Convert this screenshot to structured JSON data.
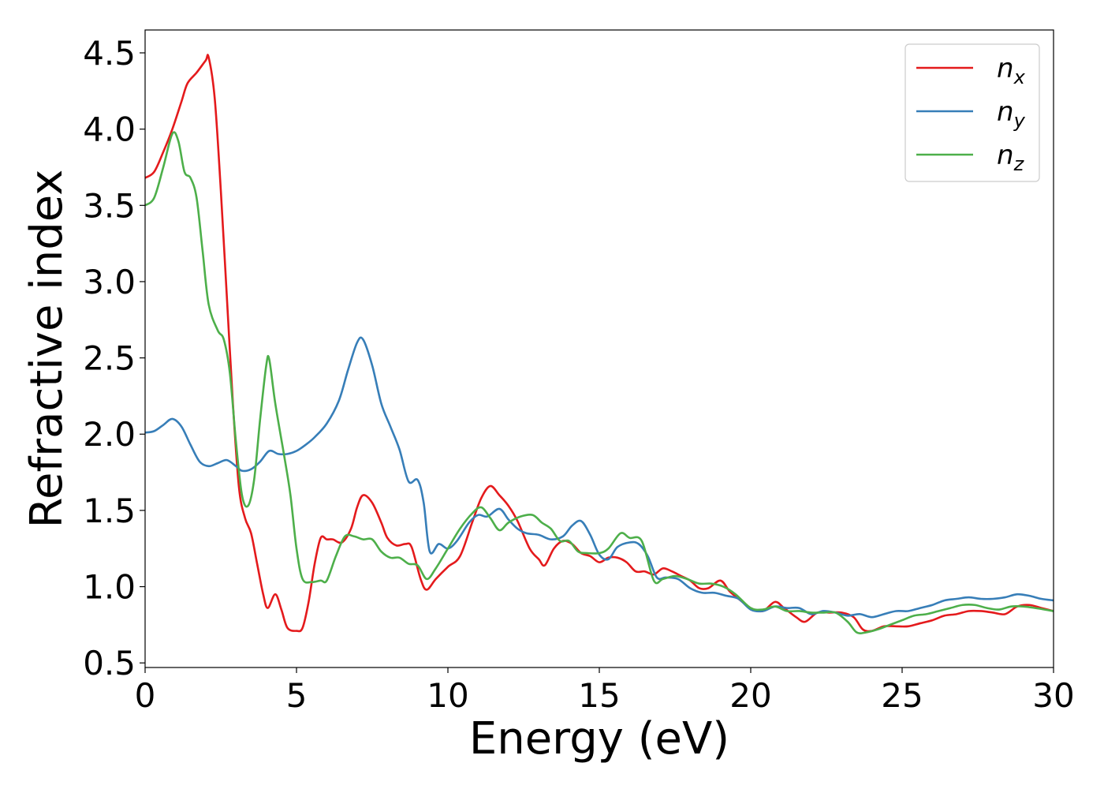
{
  "chart_data": {
    "type": "line",
    "title": "",
    "xlabel": "Energy (eV)",
    "ylabel": "Refractive index",
    "xlim": [
      0,
      30
    ],
    "ylim": [
      0.47,
      4.65
    ],
    "xticks": [
      0,
      5,
      10,
      15,
      20,
      25,
      30
    ],
    "xtick_labels": [
      "0",
      "5",
      "10",
      "15",
      "20",
      "25",
      "30"
    ],
    "yticks": [
      0.5,
      1.0,
      1.5,
      2.0,
      2.5,
      3.0,
      3.5,
      4.0,
      4.5
    ],
    "ytick_labels": [
      "0.5",
      "1.0",
      "1.5",
      "2.0",
      "2.5",
      "3.0",
      "3.5",
      "4.0",
      "4.5"
    ],
    "grid": false,
    "legend_position": "top-right",
    "series": [
      {
        "name": "n",
        "subscript": "x",
        "color": "#e41a1c",
        "points": [
          [
            0,
            3.68
          ],
          [
            0.3,
            3.72
          ],
          [
            0.6,
            3.85
          ],
          [
            0.9,
            4.0
          ],
          [
            1.2,
            4.18
          ],
          [
            1.4,
            4.3
          ],
          [
            1.7,
            4.37
          ],
          [
            2.0,
            4.45
          ],
          [
            2.1,
            4.47
          ],
          [
            2.3,
            4.2
          ],
          [
            2.5,
            3.6
          ],
          [
            2.7,
            2.9
          ],
          [
            2.9,
            2.2
          ],
          [
            3.1,
            1.65
          ],
          [
            3.3,
            1.45
          ],
          [
            3.5,
            1.35
          ],
          [
            3.7,
            1.15
          ],
          [
            3.9,
            0.95
          ],
          [
            4.05,
            0.86
          ],
          [
            4.3,
            0.95
          ],
          [
            4.5,
            0.85
          ],
          [
            4.7,
            0.73
          ],
          [
            5.0,
            0.71
          ],
          [
            5.2,
            0.73
          ],
          [
            5.4,
            0.9
          ],
          [
            5.6,
            1.15
          ],
          [
            5.8,
            1.32
          ],
          [
            6.0,
            1.31
          ],
          [
            6.2,
            1.31
          ],
          [
            6.5,
            1.29
          ],
          [
            6.8,
            1.38
          ],
          [
            7.0,
            1.52
          ],
          [
            7.2,
            1.6
          ],
          [
            7.5,
            1.55
          ],
          [
            7.8,
            1.42
          ],
          [
            8.0,
            1.32
          ],
          [
            8.3,
            1.27
          ],
          [
            8.6,
            1.28
          ],
          [
            8.8,
            1.26
          ],
          [
            9.1,
            1.05
          ],
          [
            9.3,
            0.98
          ],
          [
            9.6,
            1.05
          ],
          [
            10.0,
            1.13
          ],
          [
            10.4,
            1.2
          ],
          [
            10.8,
            1.42
          ],
          [
            11.1,
            1.58
          ],
          [
            11.4,
            1.66
          ],
          [
            11.7,
            1.6
          ],
          [
            12.0,
            1.53
          ],
          [
            12.3,
            1.43
          ],
          [
            12.7,
            1.25
          ],
          [
            13.0,
            1.18
          ],
          [
            13.2,
            1.14
          ],
          [
            13.5,
            1.25
          ],
          [
            13.8,
            1.3
          ],
          [
            14.1,
            1.28
          ],
          [
            14.4,
            1.22
          ],
          [
            14.7,
            1.2
          ],
          [
            15.0,
            1.16
          ],
          [
            15.3,
            1.19
          ],
          [
            15.6,
            1.19
          ],
          [
            15.9,
            1.16
          ],
          [
            16.2,
            1.1
          ],
          [
            16.5,
            1.1
          ],
          [
            16.8,
            1.08
          ],
          [
            17.1,
            1.12
          ],
          [
            17.4,
            1.1
          ],
          [
            17.7,
            1.07
          ],
          [
            18.0,
            1.04
          ],
          [
            18.3,
            0.99
          ],
          [
            18.6,
            0.99
          ],
          [
            19.0,
            1.04
          ],
          [
            19.3,
            0.97
          ],
          [
            19.6,
            0.92
          ],
          [
            20.0,
            0.86
          ],
          [
            20.4,
            0.84
          ],
          [
            20.8,
            0.9
          ],
          [
            21.1,
            0.86
          ],
          [
            21.5,
            0.8
          ],
          [
            21.8,
            0.77
          ],
          [
            22.2,
            0.83
          ],
          [
            22.6,
            0.83
          ],
          [
            23.0,
            0.83
          ],
          [
            23.4,
            0.8
          ],
          [
            23.7,
            0.72
          ],
          [
            24.0,
            0.71
          ],
          [
            24.4,
            0.74
          ],
          [
            24.8,
            0.74
          ],
          [
            25.2,
            0.74
          ],
          [
            25.6,
            0.76
          ],
          [
            26.0,
            0.78
          ],
          [
            26.4,
            0.81
          ],
          [
            26.8,
            0.82
          ],
          [
            27.2,
            0.84
          ],
          [
            27.6,
            0.84
          ],
          [
            28.0,
            0.83
          ],
          [
            28.4,
            0.82
          ],
          [
            28.8,
            0.87
          ],
          [
            29.2,
            0.88
          ],
          [
            29.6,
            0.86
          ],
          [
            30.0,
            0.84
          ]
        ]
      },
      {
        "name": "n",
        "subscript": "y",
        "color": "#377eb8",
        "points": [
          [
            0,
            2.01
          ],
          [
            0.3,
            2.02
          ],
          [
            0.6,
            2.06
          ],
          [
            0.9,
            2.1
          ],
          [
            1.2,
            2.05
          ],
          [
            1.5,
            1.93
          ],
          [
            1.8,
            1.82
          ],
          [
            2.1,
            1.79
          ],
          [
            2.4,
            1.81
          ],
          [
            2.7,
            1.83
          ],
          [
            3.0,
            1.79
          ],
          [
            3.2,
            1.76
          ],
          [
            3.5,
            1.77
          ],
          [
            3.8,
            1.82
          ],
          [
            4.1,
            1.89
          ],
          [
            4.4,
            1.87
          ],
          [
            4.7,
            1.87
          ],
          [
            5.0,
            1.89
          ],
          [
            5.3,
            1.93
          ],
          [
            5.6,
            1.98
          ],
          [
            6.0,
            2.07
          ],
          [
            6.4,
            2.22
          ],
          [
            6.7,
            2.42
          ],
          [
            7.0,
            2.6
          ],
          [
            7.2,
            2.62
          ],
          [
            7.5,
            2.45
          ],
          [
            7.8,
            2.2
          ],
          [
            8.1,
            2.05
          ],
          [
            8.4,
            1.9
          ],
          [
            8.7,
            1.69
          ],
          [
            9.0,
            1.7
          ],
          [
            9.2,
            1.55
          ],
          [
            9.4,
            1.23
          ],
          [
            9.7,
            1.28
          ],
          [
            10.0,
            1.25
          ],
          [
            10.3,
            1.3
          ],
          [
            10.7,
            1.42
          ],
          [
            11.0,
            1.47
          ],
          [
            11.3,
            1.46
          ],
          [
            11.7,
            1.51
          ],
          [
            12.0,
            1.44
          ],
          [
            12.3,
            1.38
          ],
          [
            12.6,
            1.35
          ],
          [
            13.0,
            1.34
          ],
          [
            13.4,
            1.31
          ],
          [
            13.8,
            1.33
          ],
          [
            14.1,
            1.4
          ],
          [
            14.4,
            1.43
          ],
          [
            14.7,
            1.34
          ],
          [
            15.0,
            1.21
          ],
          [
            15.3,
            1.18
          ],
          [
            15.6,
            1.26
          ],
          [
            16.0,
            1.29
          ],
          [
            16.3,
            1.28
          ],
          [
            16.6,
            1.2
          ],
          [
            16.9,
            1.06
          ],
          [
            17.2,
            1.06
          ],
          [
            17.6,
            1.05
          ],
          [
            18.0,
            0.99
          ],
          [
            18.4,
            0.96
          ],
          [
            18.8,
            0.96
          ],
          [
            19.2,
            0.94
          ],
          [
            19.6,
            0.92
          ],
          [
            20.0,
            0.85
          ],
          [
            20.4,
            0.84
          ],
          [
            20.8,
            0.87
          ],
          [
            21.2,
            0.86
          ],
          [
            21.6,
            0.86
          ],
          [
            22.0,
            0.82
          ],
          [
            22.4,
            0.84
          ],
          [
            22.8,
            0.83
          ],
          [
            23.2,
            0.81
          ],
          [
            23.6,
            0.82
          ],
          [
            24.0,
            0.8
          ],
          [
            24.4,
            0.82
          ],
          [
            24.8,
            0.84
          ],
          [
            25.2,
            0.84
          ],
          [
            25.6,
            0.86
          ],
          [
            26.0,
            0.88
          ],
          [
            26.4,
            0.91
          ],
          [
            26.8,
            0.92
          ],
          [
            27.2,
            0.93
          ],
          [
            27.6,
            0.92
          ],
          [
            28.0,
            0.92
          ],
          [
            28.4,
            0.93
          ],
          [
            28.8,
            0.95
          ],
          [
            29.2,
            0.94
          ],
          [
            29.6,
            0.92
          ],
          [
            30.0,
            0.91
          ]
        ]
      },
      {
        "name": "n",
        "subscript": "z",
        "color": "#4daf4a",
        "points": [
          [
            0,
            3.5
          ],
          [
            0.3,
            3.55
          ],
          [
            0.6,
            3.75
          ],
          [
            0.9,
            3.97
          ],
          [
            1.1,
            3.92
          ],
          [
            1.3,
            3.72
          ],
          [
            1.5,
            3.68
          ],
          [
            1.7,
            3.55
          ],
          [
            1.9,
            3.2
          ],
          [
            2.1,
            2.85
          ],
          [
            2.4,
            2.68
          ],
          [
            2.6,
            2.62
          ],
          [
            2.8,
            2.4
          ],
          [
            3.0,
            1.95
          ],
          [
            3.2,
            1.6
          ],
          [
            3.4,
            1.53
          ],
          [
            3.6,
            1.7
          ],
          [
            3.8,
            2.1
          ],
          [
            4.0,
            2.45
          ],
          [
            4.1,
            2.49
          ],
          [
            4.3,
            2.2
          ],
          [
            4.6,
            1.85
          ],
          [
            4.8,
            1.6
          ],
          [
            5.0,
            1.25
          ],
          [
            5.2,
            1.05
          ],
          [
            5.5,
            1.03
          ],
          [
            5.8,
            1.04
          ],
          [
            6.0,
            1.04
          ],
          [
            6.3,
            1.2
          ],
          [
            6.6,
            1.33
          ],
          [
            6.9,
            1.33
          ],
          [
            7.2,
            1.31
          ],
          [
            7.5,
            1.31
          ],
          [
            7.8,
            1.23
          ],
          [
            8.1,
            1.19
          ],
          [
            8.4,
            1.19
          ],
          [
            8.7,
            1.15
          ],
          [
            9.0,
            1.14
          ],
          [
            9.3,
            1.05
          ],
          [
            9.6,
            1.12
          ],
          [
            10.0,
            1.25
          ],
          [
            10.4,
            1.38
          ],
          [
            10.8,
            1.48
          ],
          [
            11.1,
            1.52
          ],
          [
            11.4,
            1.45
          ],
          [
            11.7,
            1.37
          ],
          [
            12.0,
            1.42
          ],
          [
            12.4,
            1.46
          ],
          [
            12.8,
            1.47
          ],
          [
            13.1,
            1.42
          ],
          [
            13.4,
            1.38
          ],
          [
            13.7,
            1.3
          ],
          [
            14.0,
            1.3
          ],
          [
            14.3,
            1.23
          ],
          [
            14.6,
            1.22
          ],
          [
            15.0,
            1.22
          ],
          [
            15.3,
            1.25
          ],
          [
            15.7,
            1.35
          ],
          [
            16.0,
            1.32
          ],
          [
            16.4,
            1.3
          ],
          [
            16.8,
            1.04
          ],
          [
            17.1,
            1.05
          ],
          [
            17.5,
            1.07
          ],
          [
            17.9,
            1.05
          ],
          [
            18.3,
            1.02
          ],
          [
            18.7,
            1.02
          ],
          [
            19.1,
            1.0
          ],
          [
            19.5,
            0.95
          ],
          [
            20.0,
            0.86
          ],
          [
            20.4,
            0.85
          ],
          [
            20.8,
            0.87
          ],
          [
            21.2,
            0.84
          ],
          [
            21.6,
            0.84
          ],
          [
            22.0,
            0.83
          ],
          [
            22.4,
            0.83
          ],
          [
            22.8,
            0.83
          ],
          [
            23.2,
            0.77
          ],
          [
            23.5,
            0.7
          ],
          [
            23.8,
            0.7
          ],
          [
            24.2,
            0.72
          ],
          [
            24.6,
            0.75
          ],
          [
            25.0,
            0.78
          ],
          [
            25.4,
            0.81
          ],
          [
            25.8,
            0.82
          ],
          [
            26.2,
            0.84
          ],
          [
            26.6,
            0.86
          ],
          [
            27.0,
            0.88
          ],
          [
            27.4,
            0.88
          ],
          [
            27.8,
            0.86
          ],
          [
            28.2,
            0.85
          ],
          [
            28.6,
            0.87
          ],
          [
            29.0,
            0.87
          ],
          [
            29.4,
            0.86
          ],
          [
            30.0,
            0.84
          ]
        ]
      }
    ]
  }
}
